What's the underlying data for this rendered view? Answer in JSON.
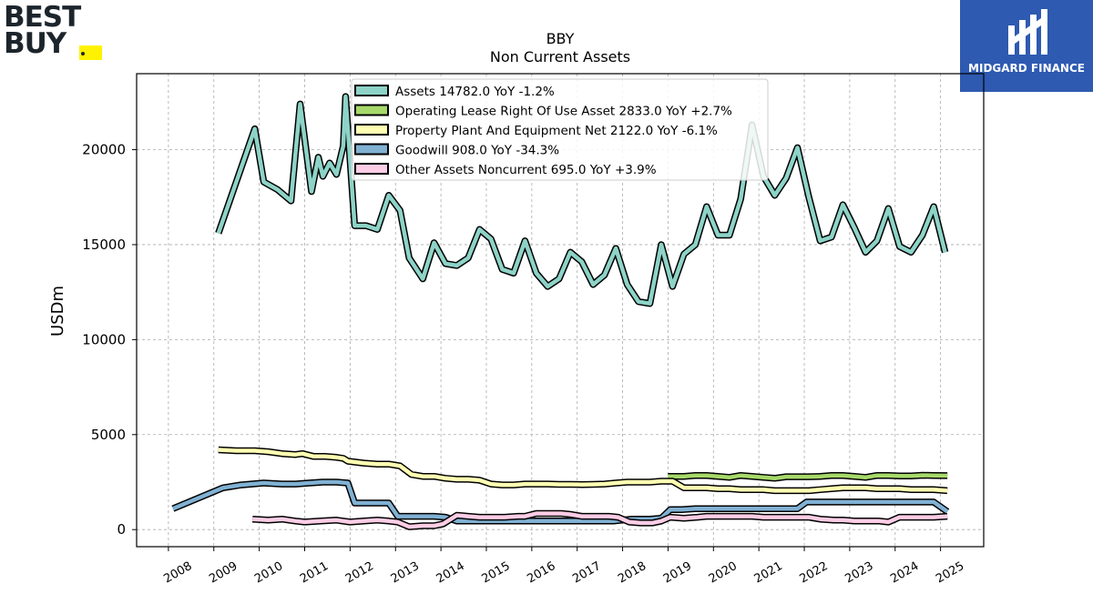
{
  "logos": {
    "left_line1": "BEST",
    "left_line2": "BUY",
    "right_text": "MIDGARD FINANCE",
    "left_tag_color": "#fff200",
    "right_bg_color": "#2e5ab1"
  },
  "chart_data": {
    "type": "line",
    "title": "BBY",
    "subtitle": "Non Current  Assets",
    "ylabel": "USDm",
    "xlabel": "",
    "xlim": [
      2007.3,
      2025.95
    ],
    "ylim": [
      -900,
      24000
    ],
    "grid": true,
    "legend_position": "top-center",
    "x_ticks": [
      2008,
      2009,
      2010,
      2011,
      2012,
      2013,
      2014,
      2015,
      2016,
      2017,
      2018,
      2019,
      2020,
      2021,
      2022,
      2023,
      2024,
      2025
    ],
    "x_tick_labels": [
      "2008",
      "2009",
      "2010",
      "2011",
      "2012",
      "2013",
      "2014",
      "2015",
      "2016",
      "2017",
      "2018",
      "2019",
      "2020",
      "2021",
      "2022",
      "2023",
      "2024",
      "2025"
    ],
    "y_ticks": [
      0,
      5000,
      10000,
      15000,
      20000
    ],
    "y_tick_labels": [
      "0",
      "5000",
      "10000",
      "15000",
      "20000"
    ],
    "series": [
      {
        "name": "Assets",
        "legend_label": "Assets  14782.0 YoY -1.2%",
        "color": "#8dd3c7",
        "points": [
          [
            2009.1,
            15600
          ],
          [
            2009.9,
            21100
          ],
          [
            2010.1,
            18300
          ],
          [
            2010.4,
            17900
          ],
          [
            2010.7,
            17300
          ],
          [
            2010.9,
            22400
          ],
          [
            2011.15,
            17800
          ],
          [
            2011.3,
            19600
          ],
          [
            2011.4,
            18600
          ],
          [
            2011.55,
            19300
          ],
          [
            2011.7,
            18700
          ],
          [
            2011.85,
            20200
          ],
          [
            2011.9,
            22800
          ],
          [
            2012.1,
            16000
          ],
          [
            2012.35,
            16000
          ],
          [
            2012.6,
            15800
          ],
          [
            2012.85,
            17600
          ],
          [
            2013.1,
            16800
          ],
          [
            2013.3,
            14300
          ],
          [
            2013.6,
            13200
          ],
          [
            2013.85,
            15100
          ],
          [
            2014.1,
            14000
          ],
          [
            2014.35,
            13900
          ],
          [
            2014.6,
            14300
          ],
          [
            2014.85,
            15800
          ],
          [
            2015.1,
            15300
          ],
          [
            2015.35,
            13700
          ],
          [
            2015.6,
            13500
          ],
          [
            2015.85,
            15200
          ],
          [
            2016.1,
            13500
          ],
          [
            2016.35,
            12800
          ],
          [
            2016.6,
            13200
          ],
          [
            2016.85,
            14600
          ],
          [
            2017.1,
            14100
          ],
          [
            2017.35,
            12900
          ],
          [
            2017.6,
            13400
          ],
          [
            2017.85,
            14800
          ],
          [
            2018.1,
            12900
          ],
          [
            2018.35,
            12000
          ],
          [
            2018.6,
            11900
          ],
          [
            2018.85,
            15000
          ],
          [
            2019.1,
            12800
          ],
          [
            2019.35,
            14500
          ],
          [
            2019.6,
            15000
          ],
          [
            2019.85,
            17000
          ],
          [
            2020.1,
            15500
          ],
          [
            2020.35,
            15500
          ],
          [
            2020.6,
            17400
          ],
          [
            2020.85,
            21300
          ],
          [
            2021.1,
            18600
          ],
          [
            2021.35,
            17600
          ],
          [
            2021.6,
            18500
          ],
          [
            2021.85,
            20100
          ],
          [
            2022.1,
            17500
          ],
          [
            2022.35,
            15200
          ],
          [
            2022.6,
            15400
          ],
          [
            2022.85,
            17100
          ],
          [
            2023.1,
            15900
          ],
          [
            2023.35,
            14600
          ],
          [
            2023.6,
            15200
          ],
          [
            2023.85,
            16900
          ],
          [
            2024.1,
            14900
          ],
          [
            2024.35,
            14600
          ],
          [
            2024.6,
            15500
          ],
          [
            2024.85,
            17000
          ],
          [
            2025.1,
            14600
          ]
        ]
      },
      {
        "name": "Operating Lease Right Of Use Asset",
        "legend_label": "Operating Lease Right Of Use Asset  2833.0 YoY +2.7%",
        "color": "#a6d96a",
        "points": [
          [
            2019.0,
            2800
          ],
          [
            2019.35,
            2800
          ],
          [
            2019.6,
            2850
          ],
          [
            2019.85,
            2850
          ],
          [
            2020.1,
            2800
          ],
          [
            2020.35,
            2750
          ],
          [
            2020.6,
            2850
          ],
          [
            2020.85,
            2800
          ],
          [
            2021.1,
            2750
          ],
          [
            2021.35,
            2700
          ],
          [
            2021.6,
            2780
          ],
          [
            2021.85,
            2780
          ],
          [
            2022.1,
            2780
          ],
          [
            2022.35,
            2800
          ],
          [
            2022.6,
            2850
          ],
          [
            2022.85,
            2850
          ],
          [
            2023.1,
            2800
          ],
          [
            2023.35,
            2750
          ],
          [
            2023.6,
            2850
          ],
          [
            2023.85,
            2850
          ],
          [
            2024.1,
            2820
          ],
          [
            2024.35,
            2820
          ],
          [
            2024.6,
            2860
          ],
          [
            2024.85,
            2850
          ],
          [
            2025.15,
            2840
          ]
        ]
      },
      {
        "name": "Property Plant And Equipment Net",
        "legend_label": "Property Plant And Equipment Net  2122.0 YoY -6.1%",
        "color": "#ffffb3",
        "points": [
          [
            2009.1,
            4200
          ],
          [
            2009.5,
            4150
          ],
          [
            2009.9,
            4150
          ],
          [
            2010.2,
            4100
          ],
          [
            2010.5,
            4000
          ],
          [
            2010.8,
            3950
          ],
          [
            2010.95,
            4000
          ],
          [
            2011.2,
            3850
          ],
          [
            2011.45,
            3850
          ],
          [
            2011.7,
            3800
          ],
          [
            2011.85,
            3750
          ],
          [
            2011.95,
            3600
          ],
          [
            2012.3,
            3500
          ],
          [
            2012.6,
            3450
          ],
          [
            2012.85,
            3450
          ],
          [
            2013.1,
            3350
          ],
          [
            2013.35,
            2900
          ],
          [
            2013.6,
            2800
          ],
          [
            2013.85,
            2800
          ],
          [
            2014.1,
            2700
          ],
          [
            2014.35,
            2650
          ],
          [
            2014.6,
            2650
          ],
          [
            2014.85,
            2600
          ],
          [
            2015.1,
            2400
          ],
          [
            2015.35,
            2350
          ],
          [
            2015.6,
            2350
          ],
          [
            2015.85,
            2400
          ],
          [
            2016.1,
            2400
          ],
          [
            2016.35,
            2400
          ],
          [
            2016.6,
            2380
          ],
          [
            2016.85,
            2380
          ],
          [
            2017.1,
            2370
          ],
          [
            2017.35,
            2380
          ],
          [
            2017.6,
            2400
          ],
          [
            2017.85,
            2450
          ],
          [
            2018.1,
            2500
          ],
          [
            2018.35,
            2500
          ],
          [
            2018.6,
            2500
          ],
          [
            2018.85,
            2550
          ],
          [
            2019.1,
            2550
          ],
          [
            2019.35,
            2200
          ],
          [
            2019.6,
            2200
          ],
          [
            2019.85,
            2200
          ],
          [
            2020.1,
            2150
          ],
          [
            2020.35,
            2150
          ],
          [
            2020.6,
            2100
          ],
          [
            2020.85,
            2100
          ],
          [
            2021.1,
            2100
          ],
          [
            2021.35,
            2050
          ],
          [
            2021.6,
            2050
          ],
          [
            2021.85,
            2050
          ],
          [
            2022.1,
            2050
          ],
          [
            2022.35,
            2100
          ],
          [
            2022.6,
            2150
          ],
          [
            2022.85,
            2200
          ],
          [
            2023.1,
            2200
          ],
          [
            2023.35,
            2200
          ],
          [
            2023.6,
            2150
          ],
          [
            2023.85,
            2150
          ],
          [
            2024.1,
            2150
          ],
          [
            2024.35,
            2100
          ],
          [
            2024.6,
            2100
          ],
          [
            2024.85,
            2100
          ],
          [
            2025.15,
            2050
          ]
        ]
      },
      {
        "name": "Goodwill",
        "legend_label": "Goodwill  908.0 YoY -34.3%",
        "color": "#80b1d3",
        "points": [
          [
            2008.1,
            1100
          ],
          [
            2009.2,
            2200
          ],
          [
            2009.6,
            2350
          ],
          [
            2010.1,
            2450
          ],
          [
            2010.5,
            2400
          ],
          [
            2010.8,
            2400
          ],
          [
            2011.1,
            2450
          ],
          [
            2011.4,
            2500
          ],
          [
            2011.7,
            2500
          ],
          [
            2011.95,
            2450
          ],
          [
            2012.1,
            1400
          ],
          [
            2012.4,
            1400
          ],
          [
            2012.85,
            1400
          ],
          [
            2013.05,
            700
          ],
          [
            2013.5,
            700
          ],
          [
            2013.85,
            700
          ],
          [
            2014.1,
            650
          ],
          [
            2014.35,
            450
          ],
          [
            2014.6,
            450
          ],
          [
            2014.85,
            450
          ],
          [
            2015.2,
            450
          ],
          [
            2016.0,
            450
          ],
          [
            2016.9,
            450
          ],
          [
            2017.8,
            450
          ],
          [
            2018.2,
            550
          ],
          [
            2018.6,
            550
          ],
          [
            2018.85,
            600
          ],
          [
            2019.05,
            1050
          ],
          [
            2019.3,
            1050
          ],
          [
            2019.6,
            1100
          ],
          [
            2019.9,
            1100
          ],
          [
            2020.5,
            1100
          ],
          [
            2021.2,
            1100
          ],
          [
            2021.85,
            1100
          ],
          [
            2022.05,
            1450
          ],
          [
            2022.5,
            1450
          ],
          [
            2023.2,
            1450
          ],
          [
            2023.9,
            1450
          ],
          [
            2024.6,
            1450
          ],
          [
            2024.85,
            1450
          ],
          [
            2025.15,
            950
          ]
        ]
      },
      {
        "name": "Other Assets Noncurrent",
        "legend_label": "Other Assets Noncurrent  695.0 YoY +3.9%",
        "color": "#fccde5",
        "points": [
          [
            2009.85,
            550
          ],
          [
            2010.2,
            500
          ],
          [
            2010.5,
            550
          ],
          [
            2010.8,
            450
          ],
          [
            2011.0,
            400
          ],
          [
            2011.35,
            450
          ],
          [
            2011.7,
            500
          ],
          [
            2012.0,
            400
          ],
          [
            2012.3,
            450
          ],
          [
            2012.6,
            500
          ],
          [
            2012.85,
            450
          ],
          [
            2013.05,
            400
          ],
          [
            2013.3,
            150
          ],
          [
            2013.6,
            200
          ],
          [
            2013.85,
            200
          ],
          [
            2014.05,
            300
          ],
          [
            2014.35,
            750
          ],
          [
            2014.6,
            700
          ],
          [
            2014.85,
            650
          ],
          [
            2015.1,
            650
          ],
          [
            2015.4,
            650
          ],
          [
            2015.7,
            700
          ],
          [
            2015.85,
            700
          ],
          [
            2016.1,
            850
          ],
          [
            2016.35,
            850
          ],
          [
            2016.65,
            850
          ],
          [
            2016.85,
            800
          ],
          [
            2017.1,
            700
          ],
          [
            2017.4,
            700
          ],
          [
            2017.7,
            700
          ],
          [
            2017.9,
            650
          ],
          [
            2018.15,
            400
          ],
          [
            2018.4,
            350
          ],
          [
            2018.65,
            350
          ],
          [
            2018.85,
            450
          ],
          [
            2019.05,
            650
          ],
          [
            2019.35,
            600
          ],
          [
            2019.65,
            650
          ],
          [
            2019.85,
            700
          ],
          [
            2020.1,
            700
          ],
          [
            2020.4,
            700
          ],
          [
            2020.7,
            700
          ],
          [
            2020.85,
            700
          ],
          [
            2021.1,
            650
          ],
          [
            2021.35,
            650
          ],
          [
            2021.6,
            650
          ],
          [
            2021.85,
            650
          ],
          [
            2022.1,
            650
          ],
          [
            2022.35,
            550
          ],
          [
            2022.65,
            500
          ],
          [
            2022.85,
            500
          ],
          [
            2023.1,
            450
          ],
          [
            2023.35,
            450
          ],
          [
            2023.65,
            450
          ],
          [
            2023.85,
            400
          ],
          [
            2024.1,
            650
          ],
          [
            2024.35,
            650
          ],
          [
            2024.6,
            650
          ],
          [
            2024.85,
            650
          ],
          [
            2025.15,
            700
          ]
        ]
      }
    ]
  }
}
